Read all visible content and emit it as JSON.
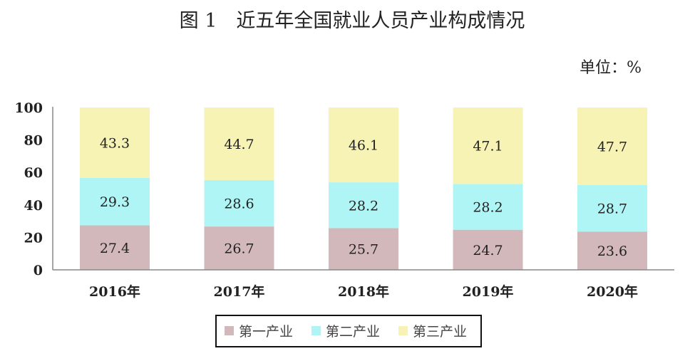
{
  "chart_data": {
    "type": "bar",
    "stacked": true,
    "title": "图 1　近五年全国就业人员产业构成情况",
    "unit": "单位：%",
    "xlabel": "",
    "ylabel": "",
    "ylim": [
      0,
      100
    ],
    "yticks": [
      "0",
      "20",
      "40",
      "60",
      "80",
      "100"
    ],
    "categories": [
      "2016年",
      "2017年",
      "2018年",
      "2019年",
      "2020年"
    ],
    "series": [
      {
        "name": "第一产业",
        "color": "#d2b8bb",
        "values": [
          27.4,
          26.7,
          25.7,
          24.7,
          23.6
        ],
        "labels": [
          "27.4",
          "26.7",
          "25.7",
          "24.7",
          "23.6"
        ]
      },
      {
        "name": "第二产业",
        "color": "#b0f5f5",
        "values": [
          29.3,
          28.6,
          28.2,
          28.2,
          28.7
        ],
        "labels": [
          "29.3",
          "28.6",
          "28.2",
          "28.2",
          "28.7"
        ]
      },
      {
        "name": "第三产业",
        "color": "#f7f3b5",
        "values": [
          43.3,
          44.7,
          46.1,
          47.1,
          47.7
        ],
        "labels": [
          "43.3",
          "44.7",
          "46.1",
          "47.1",
          "47.7"
        ]
      }
    ],
    "legend": "bottom",
    "grid": false
  }
}
